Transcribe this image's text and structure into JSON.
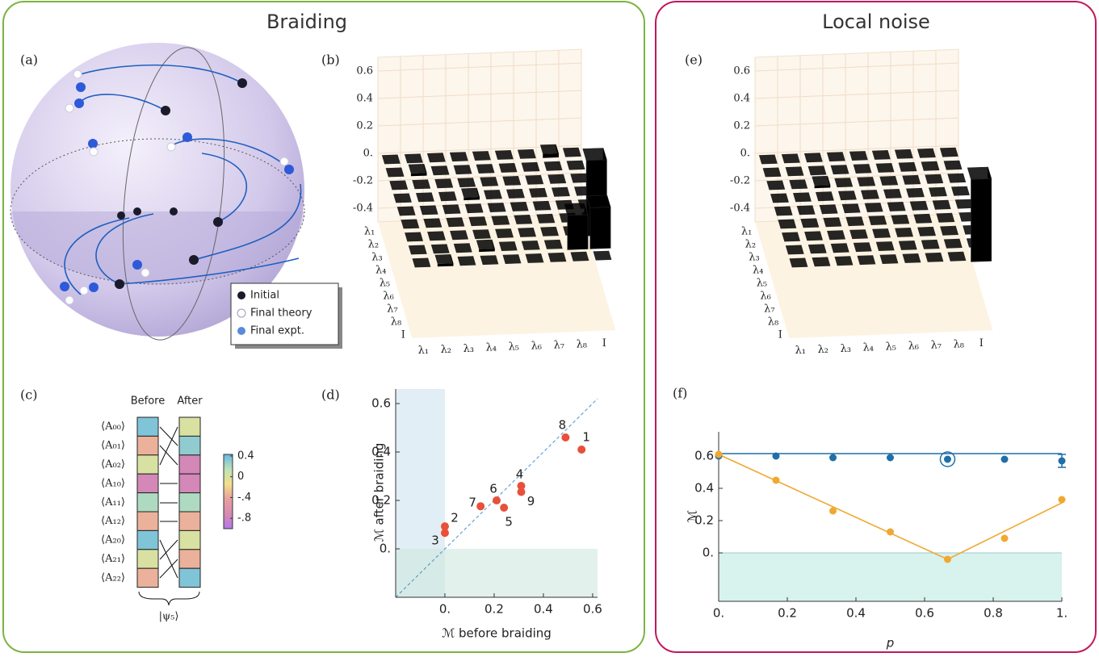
{
  "boxes": [
    "Braiding",
    "Local noise"
  ],
  "panel_labels": [
    "(a)",
    "(b)",
    "(c)",
    "(d)",
    "(e)",
    "(f)"
  ],
  "sphere_legend": [
    "Initial",
    "Final theory",
    "Final expt."
  ],
  "chart_data": [
    {
      "type": "bar3d",
      "labels": [
        "λ₁",
        "λ₂",
        "λ₃",
        "λ₄",
        "λ₅",
        "λ₆",
        "λ₇",
        "λ₈",
        "I"
      ],
      "zlim": [
        -0.5,
        0.7
      ],
      "zticks": [
        0.6,
        0.4,
        0.2,
        {
          "value": 0,
          "label": "0."
        },
        -0.2,
        -0.4
      ],
      "values": [
        [
          0,
          0,
          0,
          0,
          0,
          0,
          0,
          0.03,
          0
        ],
        [
          0,
          0.02,
          0,
          0,
          0,
          0,
          0,
          0,
          0
        ],
        [
          0,
          0,
          0,
          0,
          0,
          0,
          0,
          0,
          0
        ],
        [
          0,
          0,
          0,
          0.02,
          0,
          0,
          0,
          0,
          0
        ],
        [
          0,
          0,
          0,
          0,
          0,
          0,
          0,
          0,
          0
        ],
        [
          0,
          0,
          0,
          0,
          0,
          0,
          0,
          0,
          0
        ],
        [
          0,
          0,
          0,
          0,
          0,
          0,
          0,
          0,
          0.55
        ],
        [
          0,
          0,
          0,
          0.02,
          0,
          0,
          0,
          0.25,
          0.3
        ],
        [
          0,
          0.02,
          0,
          0,
          0,
          0,
          0,
          0,
          0
        ]
      ]
    },
    {
      "type": "bar3d",
      "labels": [
        "λ₁",
        "λ₂",
        "λ₃",
        "λ₄",
        "λ₅",
        "λ₆",
        "λ₇",
        "λ₈",
        "I"
      ],
      "zlim": [
        -0.5,
        0.7
      ],
      "zticks": [
        0.6,
        0.4,
        0.2,
        {
          "value": 0,
          "label": "0."
        },
        -0.2,
        -0.4
      ],
      "values": [
        [
          0,
          0,
          0,
          0,
          0,
          0,
          0,
          0,
          0
        ],
        [
          0,
          0,
          0,
          0,
          0,
          0,
          0,
          0,
          0
        ],
        [
          0,
          0,
          0.02,
          0,
          0,
          0,
          0,
          0,
          0
        ],
        [
          0,
          0,
          0,
          0,
          0,
          0,
          0,
          0,
          0
        ],
        [
          0,
          0,
          0,
          0,
          0,
          0,
          0,
          0,
          0
        ],
        [
          0,
          0,
          0,
          0,
          0,
          0,
          0,
          0,
          0
        ],
        [
          0,
          0,
          0,
          0,
          0,
          0,
          0,
          0,
          0
        ],
        [
          0,
          0,
          0,
          0,
          0,
          0,
          0,
          0,
          0
        ],
        [
          0,
          0,
          0,
          0,
          0,
          0,
          0,
          0,
          0.6
        ]
      ]
    },
    {
      "type": "heatmap",
      "rows": [
        "⟨A₀₀⟩",
        "⟨A₀₁⟩",
        "⟨A₀₂⟩",
        "⟨A₁₀⟩",
        "⟨A₁₁⟩",
        "⟨A₁₂⟩",
        "⟨A₂₀⟩",
        "⟨A₂₁⟩",
        "⟨A₂₂⟩"
      ],
      "columns": [
        "Before",
        "After"
      ],
      "values": [
        [
          0.35,
          -0.35,
          0,
          -0.75,
          0.2,
          -0.35,
          0.35,
          0,
          -0.35
        ],
        [
          0,
          0.3,
          -0.75,
          -0.75,
          0.2,
          -0.35,
          0,
          -0.35,
          0.35
        ]
      ],
      "clim": [
        -1,
        0.43
      ],
      "cticks": [
        0.4,
        0,
        {
          "value": -0.4,
          "label": "-.4"
        },
        {
          "value": -0.8,
          "label": "-.8"
        }
      ],
      "bottom_label": "|ψ₅⟩"
    },
    {
      "type": "scatter",
      "x": [
        0.555,
        0,
        0,
        0.31,
        0.24,
        0.21,
        0.145,
        0.49,
        0.31
      ],
      "values": [
        0.41,
        0.093,
        0.066,
        0.26,
        0.17,
        0.2,
        0.176,
        0.46,
        0.235
      ],
      "point_labels": [
        "1",
        "2",
        "3",
        "4",
        "5",
        "6",
        "7",
        "8",
        "9"
      ],
      "color": "#e8503a",
      "xlabel": "ℳ before braiding",
      "ylabel": "ℳ after braiding",
      "xlim": [
        -0.2,
        0.62
      ],
      "ylim": [
        -0.2,
        0.66
      ],
      "xticks": [
        {
          "value": 0,
          "label": "0."
        },
        0.2,
        0.4,
        0.6
      ],
      "yticks": [
        {
          "value": 0,
          "label": "0."
        },
        0.2,
        0.4,
        0.6
      ]
    },
    {
      "type": "line",
      "x": [
        0,
        0.167,
        0.333,
        0.5,
        0.667,
        0.833,
        1
      ],
      "series": [
        {
          "color": "#1f6fa8",
          "values": [
            0.6,
            0.6,
            0.59,
            0.59,
            0.58,
            0.58,
            0.57
          ],
          "errors": [
            null,
            null,
            null,
            null,
            null,
            null,
            0.04
          ]
        },
        {
          "color": "#f0a830",
          "values": [
            0.61,
            0.45,
            0.26,
            0.13,
            -0.04,
            0.09,
            0.33
          ]
        }
      ],
      "fits": [
        {
          "color": "#1f6fa8",
          "x": [
            0,
            1
          ],
          "values": [
            0.615,
            0.615
          ]
        },
        {
          "color": "#f0a830",
          "x": [
            0,
            0.667,
            1
          ],
          "values": [
            0.61,
            -0.04,
            0.31
          ]
        }
      ],
      "xlabel": "p",
      "ylabel": "ℳ",
      "xlim": [
        0,
        1
      ],
      "ylim": [
        -0.3,
        0.75
      ],
      "xticks": [
        {
          "value": 0,
          "label": "0."
        },
        0.2,
        0.4,
        0.6,
        0.8,
        {
          "value": 1,
          "label": "1."
        }
      ],
      "yticks": [
        {
          "value": 0,
          "label": "0."
        },
        0.2,
        0.4,
        0.6
      ]
    }
  ]
}
